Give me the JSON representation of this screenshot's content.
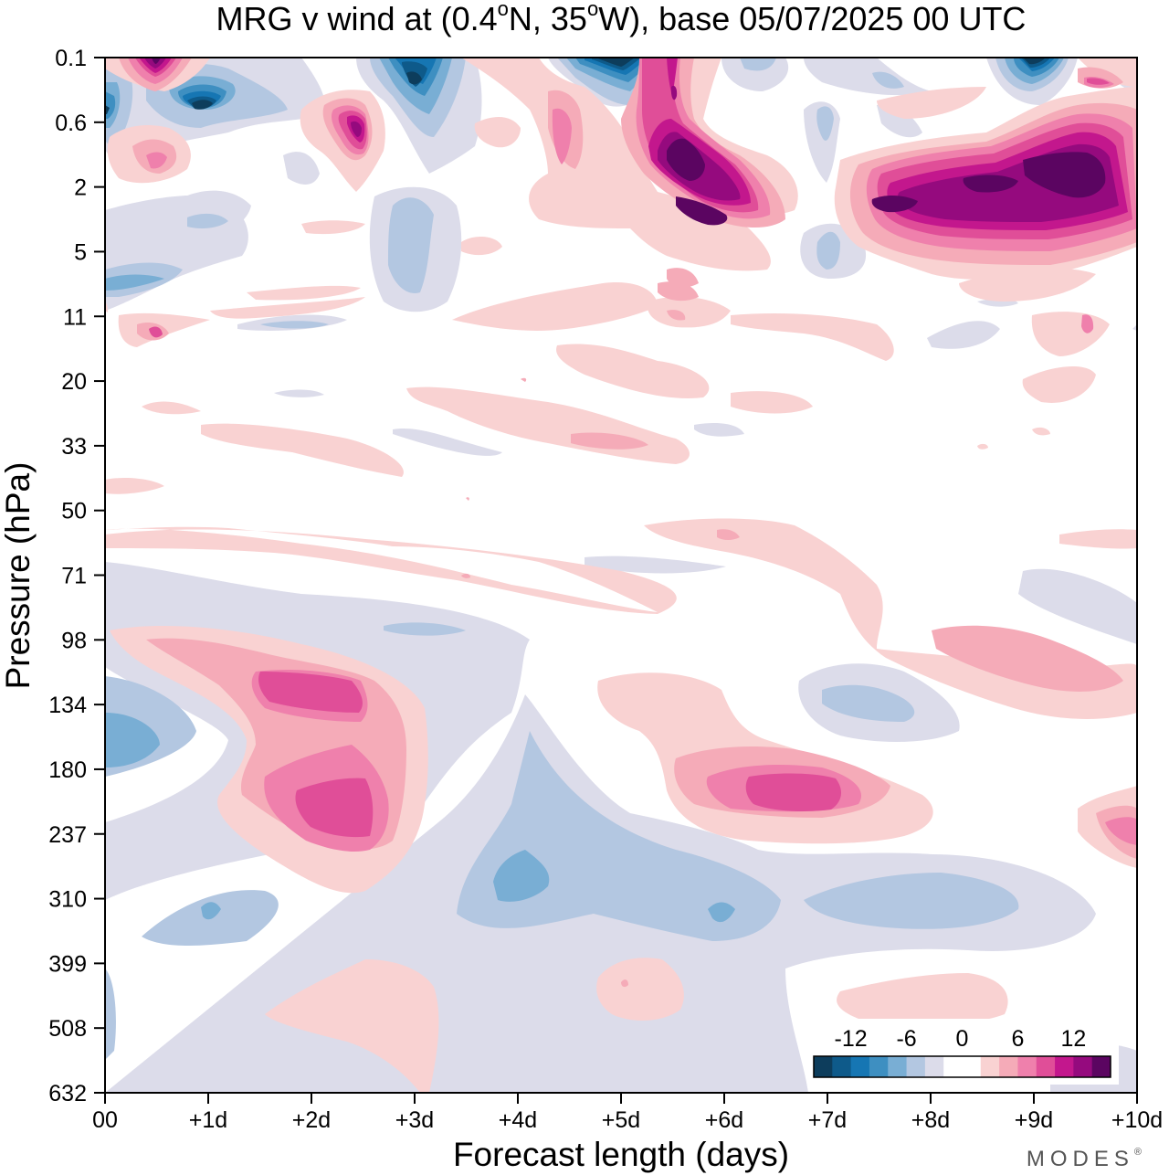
{
  "chart_data": {
    "type": "heatmap",
    "title": {
      "prefix": "MRG v wind at (0.4",
      "deg1": "o",
      "mid": "N, 35",
      "deg2": "o",
      "suffix": "W),  base 05/07/2025  00 UTC"
    },
    "xlabel": "Forecast length (days)",
    "ylabel": "Pressure (hPa)",
    "x_ticks": [
      "00",
      "+1d",
      "+2d",
      "+3d",
      "+4d",
      "+5d",
      "+6d",
      "+7d",
      "+8d",
      "+9d",
      "+10d"
    ],
    "xlim": [
      0,
      10
    ],
    "y_ticks": [
      "0.1",
      "0.6",
      "2",
      "5",
      "11",
      "20",
      "33",
      "50",
      "71",
      "98",
      "134",
      "180",
      "237",
      "310",
      "399",
      "508",
      "632"
    ],
    "ylim": [
      "0.1",
      "632"
    ],
    "levels": [
      -16,
      -14,
      -12,
      -10,
      -8,
      -6,
      -4,
      -2,
      2,
      4,
      6,
      8,
      10,
      12,
      14,
      16
    ],
    "colorbar": {
      "tick_labels": [
        "-12",
        "-6",
        "0",
        "6",
        "12"
      ],
      "colors": [
        "#0d3d5c",
        "#0e5a8a",
        "#1676b3",
        "#3e8fc1",
        "#79aed4",
        "#b3c7e1",
        "#dcdcea",
        "#ffffff",
        "#ffffff",
        "#f9d2d2",
        "#f5abb8",
        "#ef80ac",
        "#e04e98",
        "#c3178d",
        "#950a7e",
        "#5b0561"
      ]
    },
    "field_features": [
      {
        "x": 5.5,
        "p": 2,
        "value": 18
      },
      {
        "x": 5.9,
        "p": 3.2,
        "value": 12
      },
      {
        "x": 9.4,
        "p": 2,
        "value": 18
      },
      {
        "x": 8.3,
        "p": 3,
        "value": 14
      },
      {
        "x": 2.5,
        "p": 0.5,
        "value": 14
      },
      {
        "x": 4.9,
        "p": 0.15,
        "value": -16
      },
      {
        "x": 3.0,
        "p": 0.15,
        "value": -16
      },
      {
        "x": 9.0,
        "p": 0.15,
        "value": -16
      },
      {
        "x": 1.0,
        "p": 0.4,
        "value": -16
      },
      {
        "x": 0.1,
        "p": 0.5,
        "value": -14
      },
      {
        "x": 0.5,
        "p": 0.15,
        "value": 10
      },
      {
        "x": 2.1,
        "p": 200,
        "value": 11
      },
      {
        "x": 2.0,
        "p": 120,
        "value": 10
      },
      {
        "x": 6.5,
        "p": 200,
        "value": 9
      },
      {
        "x": 4.0,
        "p": 290,
        "value": -8
      },
      {
        "x": 0.2,
        "p": 160,
        "value": -8
      },
      {
        "x": 7.4,
        "p": 130,
        "value": -6
      }
    ]
  },
  "branding": {
    "logo": "MODES",
    "mark": "®"
  }
}
